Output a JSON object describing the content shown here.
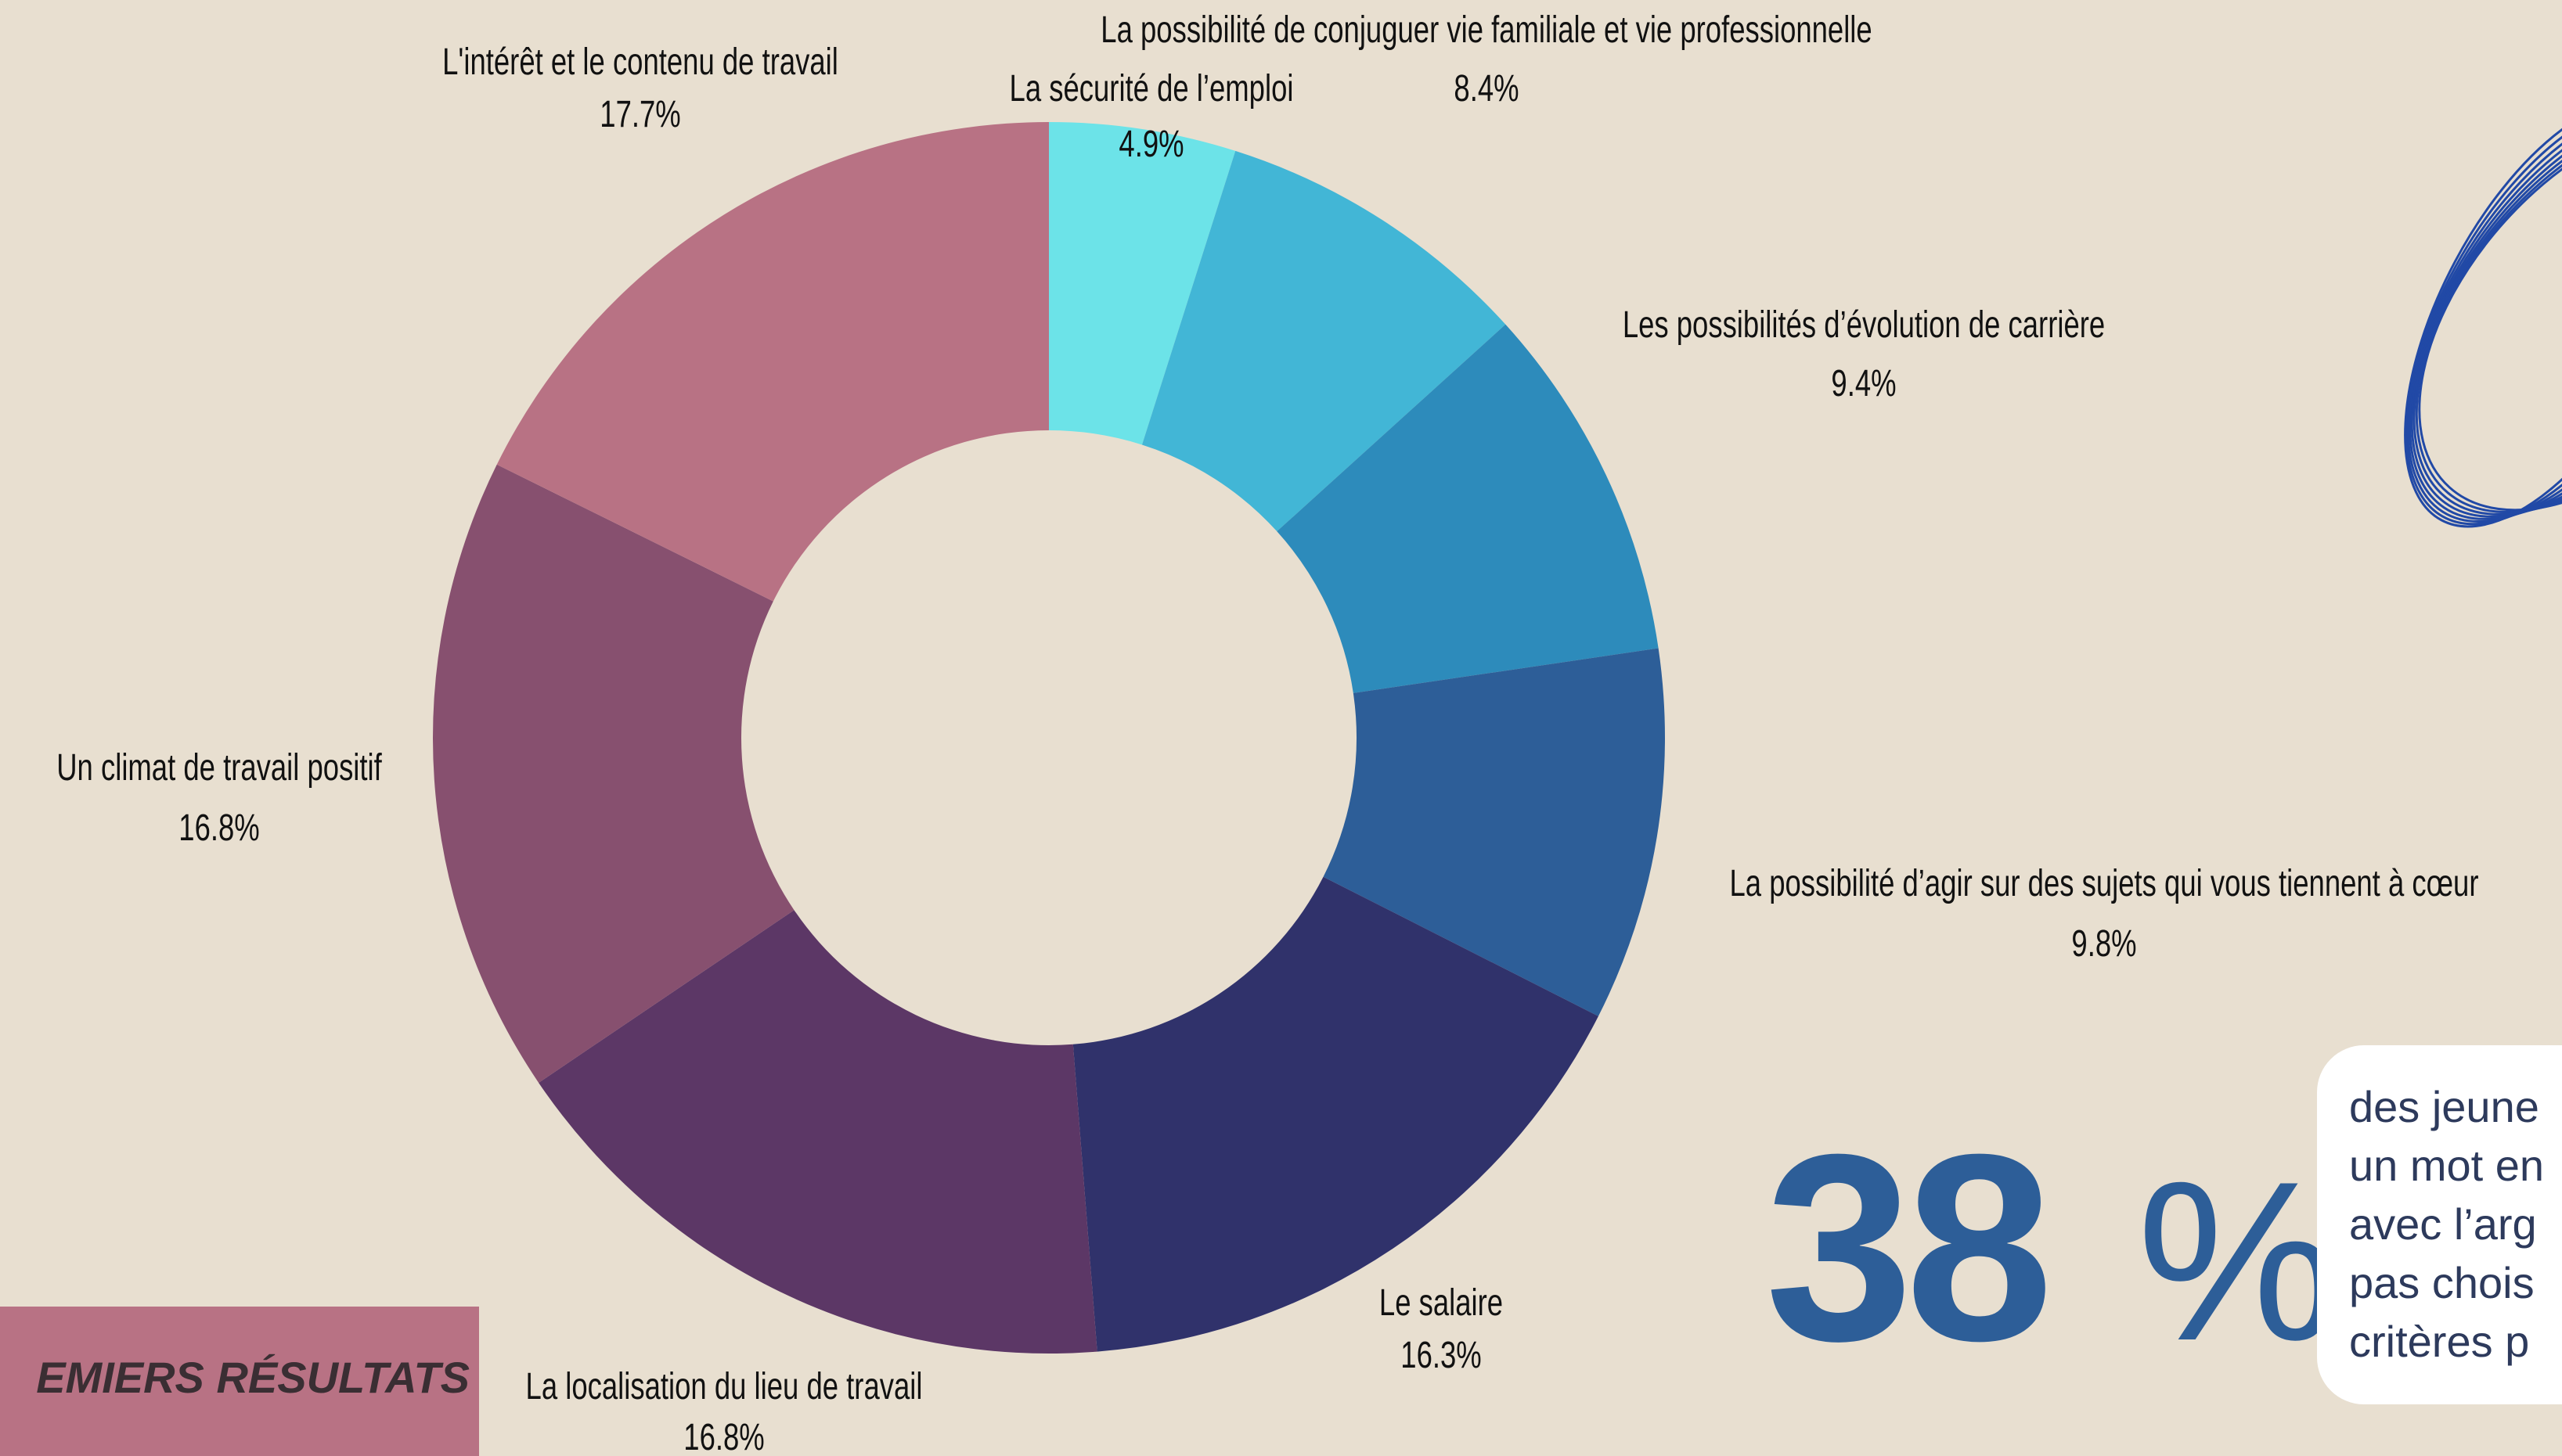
{
  "chart_data": {
    "type": "donut",
    "categories": [
      "La sécurité de l’emploi",
      "La possibilité de conjuguer vie familiale et vie professionnelle",
      "Les possibilités d’évolution de carrière",
      "La possibilité d’agir sur des sujets qui vous tiennent à cœur",
      "Le salaire",
      "La localisation du lieu de travail",
      "Un climat de travail positif",
      "L'intérêt et le contenu de travail"
    ],
    "values": [
      4.9,
      8.4,
      9.4,
      9.8,
      16.3,
      16.8,
      16.8,
      17.7
    ],
    "value_labels": [
      "4.9%",
      "8.4%",
      "9.4%",
      "9.8%",
      "16.3%",
      "16.8%",
      "16.8%",
      "17.7%"
    ],
    "colors": [
      "#6ce3e8",
      "#42b6d6",
      "#2d8bbb",
      "#2d5e98",
      "#30326b",
      "#5c3766",
      "#87506f",
      "#b87284"
    ]
  },
  "banner": {
    "text": "EMIERS RÉSULTATS"
  },
  "stat": {
    "number": "38",
    "unit": "%",
    "lines": [
      "des jeune",
      "un mot en",
      "avec l’arg",
      "pas chois",
      "critères p"
    ]
  }
}
